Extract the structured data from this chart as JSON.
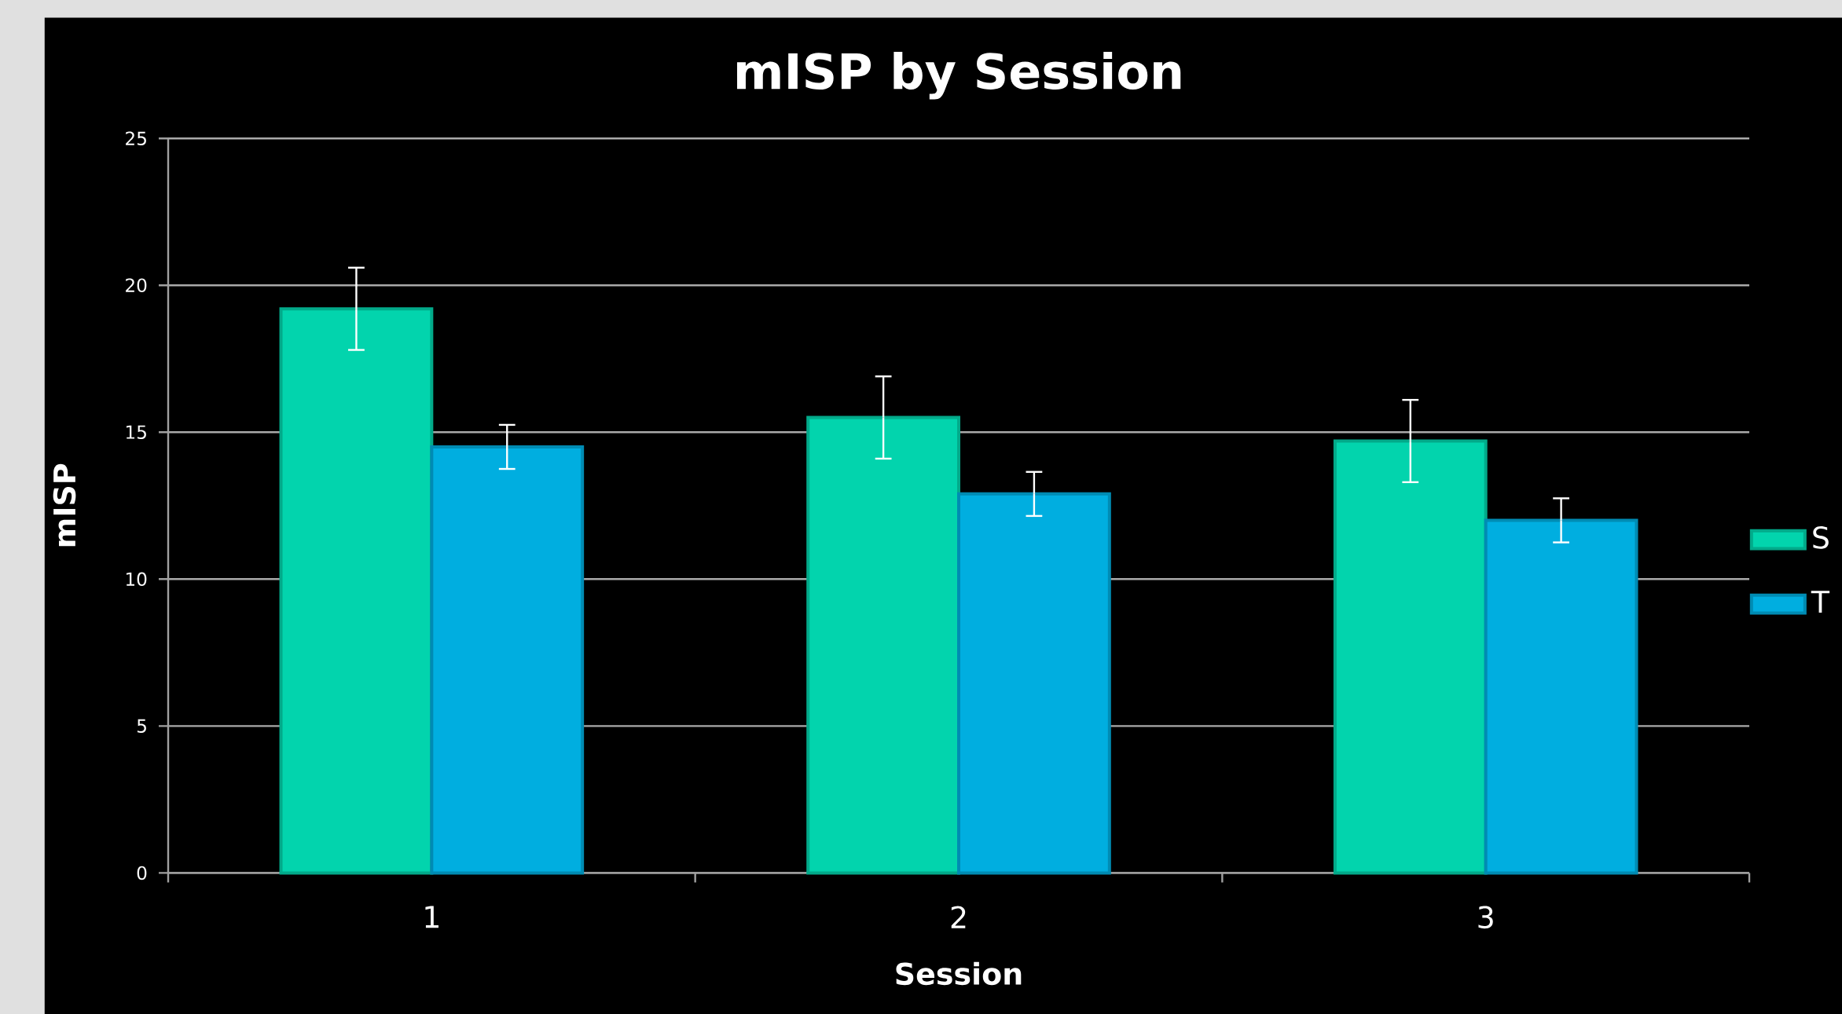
{
  "chart_data": {
    "type": "bar",
    "title": "mISP by Session",
    "xlabel": "Session",
    "ylabel": "mISP",
    "categories": [
      "1",
      "2",
      "3"
    ],
    "series": [
      {
        "name": "S",
        "color": "#02d4ad",
        "values": [
          19.2,
          15.5,
          14.7
        ],
        "errors": [
          1.4,
          1.4,
          1.4
        ]
      },
      {
        "name": "T",
        "color": "#00aee0",
        "values": [
          14.5,
          12.9,
          12.0
        ],
        "errors": [
          0.75,
          0.75,
          0.75
        ]
      }
    ],
    "ylim": [
      0,
      25
    ],
    "yticks": [
      0,
      5,
      10,
      15,
      20,
      25
    ],
    "grid": "y",
    "legend": "right"
  }
}
